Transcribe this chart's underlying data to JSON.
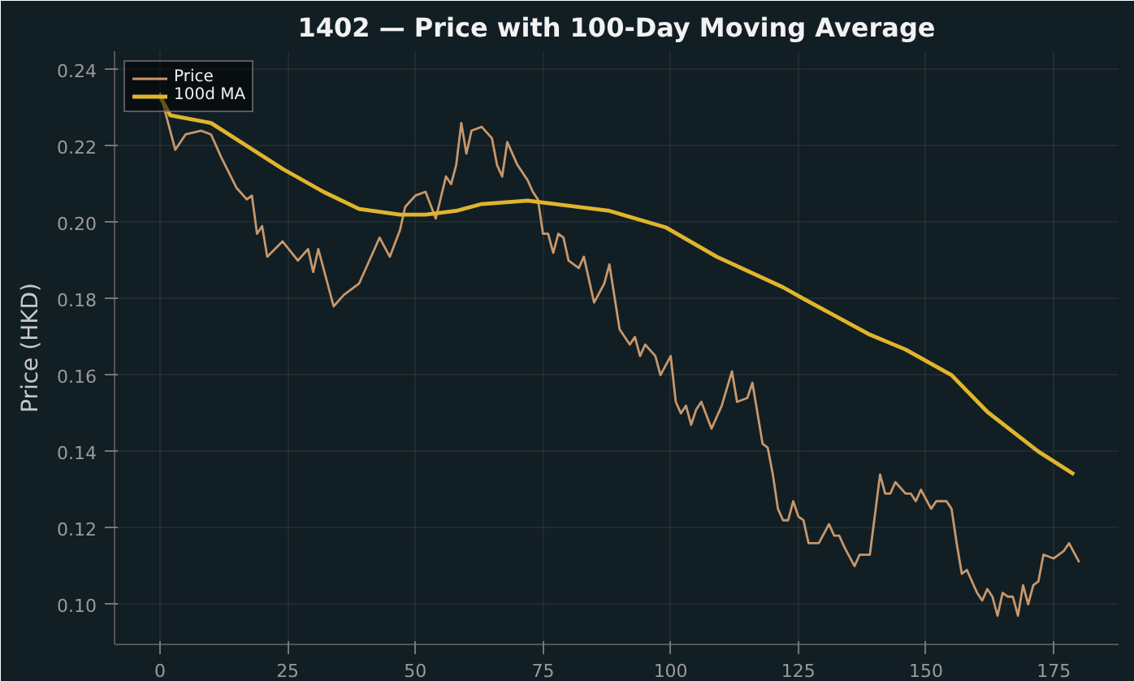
{
  "chart_data": {
    "type": "line",
    "title": "1402 — Price with 100-Day Moving Average",
    "ylabel": "Price (HKD)",
    "xlim": [
      -8.9,
      187.7
    ],
    "ylim": [
      0.0895,
      0.2448
    ],
    "xticks": [
      0,
      25,
      50,
      75,
      100,
      125,
      150,
      175
    ],
    "yticks": [
      {
        "value": 0.1,
        "label": "0.10"
      },
      {
        "value": 0.12,
        "label": "0.12"
      },
      {
        "value": 0.14,
        "label": "0.14"
      },
      {
        "value": 0.16,
        "label": "0.16"
      },
      {
        "value": 0.18,
        "label": "0.18"
      },
      {
        "value": 0.2,
        "label": "0.20"
      },
      {
        "value": 0.22,
        "label": "0.22"
      },
      {
        "value": 0.24,
        "label": "0.24"
      }
    ],
    "grid": true,
    "legend": "top left",
    "series": [
      {
        "name": "Price",
        "color": "#c8976a",
        "x": [
          0,
          3,
          5,
          8,
          10,
          12,
          15,
          17,
          18,
          19,
          20,
          21,
          24,
          27,
          29,
          30,
          31,
          34,
          36,
          39,
          42,
          43,
          45,
          47,
          48,
          50,
          52,
          54,
          56,
          57,
          58,
          59,
          60,
          61,
          63,
          65,
          66,
          67,
          68,
          70,
          72,
          73,
          74,
          75,
          76,
          77,
          78,
          79,
          80,
          82,
          83,
          85,
          87,
          88,
          90,
          92,
          93,
          94,
          95,
          97,
          98,
          100,
          101,
          102,
          103,
          104,
          105,
          106,
          108,
          110,
          112,
          113,
          115,
          116,
          118,
          119,
          120,
          121,
          122,
          123,
          124,
          125,
          126,
          127,
          129,
          131,
          132,
          133,
          134,
          136,
          137,
          139,
          141,
          142,
          143,
          144,
          146,
          147,
          148,
          149,
          151,
          152,
          154,
          155,
          156,
          157,
          158,
          160,
          161,
          162,
          163,
          164,
          165,
          166,
          167,
          168,
          169,
          170,
          171,
          172,
          173,
          175,
          177,
          178,
          180
        ],
        "values": [
          0.234,
          0.219,
          0.223,
          0.224,
          0.223,
          0.217,
          0.209,
          0.206,
          0.207,
          0.197,
          0.199,
          0.191,
          0.195,
          0.19,
          0.193,
          0.187,
          0.193,
          0.178,
          0.181,
          0.184,
          0.193,
          0.196,
          0.191,
          0.198,
          0.204,
          0.207,
          0.208,
          0.201,
          0.212,
          0.21,
          0.215,
          0.226,
          0.218,
          0.224,
          0.225,
          0.222,
          0.215,
          0.212,
          0.221,
          0.215,
          0.211,
          0.208,
          0.206,
          0.197,
          0.197,
          0.192,
          0.197,
          0.196,
          0.19,
          0.188,
          0.191,
          0.179,
          0.184,
          0.189,
          0.172,
          0.168,
          0.17,
          0.165,
          0.168,
          0.165,
          0.16,
          0.165,
          0.153,
          0.15,
          0.152,
          0.147,
          0.151,
          0.153,
          0.146,
          0.152,
          0.161,
          0.153,
          0.154,
          0.158,
          0.142,
          0.141,
          0.134,
          0.125,
          0.122,
          0.122,
          0.127,
          0.123,
          0.122,
          0.116,
          0.116,
          0.121,
          0.118,
          0.118,
          0.115,
          0.11,
          0.113,
          0.113,
          0.134,
          0.129,
          0.129,
          0.132,
          0.129,
          0.129,
          0.127,
          0.13,
          0.125,
          0.127,
          0.127,
          0.125,
          0.116,
          0.108,
          0.109,
          0.103,
          0.101,
          0.104,
          0.102,
          0.097,
          0.103,
          0.102,
          0.102,
          0.097,
          0.105,
          0.1,
          0.105,
          0.106,
          0.113,
          0.112,
          0.114,
          0.116,
          0.111
        ]
      },
      {
        "name": "100d MA",
        "color": "#e0b52c",
        "x": [
          0,
          2,
          10,
          17,
          24,
          32,
          39,
          47,
          52,
          58,
          63,
          72,
          88,
          99,
          109,
          122,
          126,
          139,
          146,
          155,
          162,
          172,
          179
        ],
        "values": [
          0.233,
          0.228,
          0.226,
          0.22,
          0.214,
          0.208,
          0.2035,
          0.202,
          0.202,
          0.203,
          0.2048,
          0.2057,
          0.203,
          0.1987,
          0.191,
          0.183,
          0.18,
          0.1706,
          0.1667,
          0.16,
          0.1504,
          0.14,
          0.134
        ]
      }
    ]
  }
}
